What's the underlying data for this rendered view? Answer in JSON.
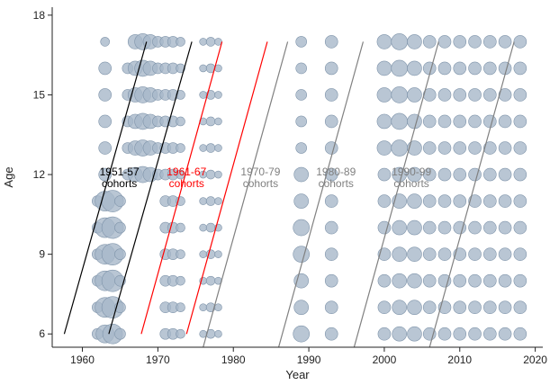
{
  "chart_data": {
    "type": "scatter",
    "title": "",
    "xlabel": "Year",
    "ylabel": "Age",
    "xlim": [
      1956,
      2021
    ],
    "ylim": [
      5.5,
      18.3
    ],
    "xticks": [
      1960,
      1970,
      1980,
      1990,
      2000,
      2010,
      2020
    ],
    "yticks": [
      6,
      9,
      12,
      15,
      18
    ],
    "grid": false,
    "bubble_color": "#a7b8c9",
    "bubble_edge_color": "#7f94aa",
    "bubble_columns": [
      {
        "year": 1962,
        "sizes": {
          "6": 6,
          "7": 6,
          "8": 6,
          "9": 6,
          "10": 6,
          "11": 6
        }
      },
      {
        "year": 1963,
        "sizes": {
          "6": 10,
          "7": 11,
          "8": 11,
          "9": 11,
          "10": 11,
          "11": 11,
          "12": 7,
          "13": 7,
          "14": 7,
          "15": 7,
          "16": 7,
          "17": 5
        }
      },
      {
        "year": 1964,
        "sizes": {
          "6": 11,
          "7": 12,
          "8": 12,
          "9": 12,
          "10": 12,
          "11": 12
        }
      },
      {
        "year": 1965,
        "sizes": {
          "6": 6,
          "7": 6,
          "8": 6,
          "9": 6,
          "10": 6,
          "11": 6
        }
      },
      {
        "year": 1966,
        "sizes": {
          "12": 6,
          "13": 6,
          "14": 6,
          "15": 6,
          "16": 6
        }
      },
      {
        "year": 1967,
        "sizes": {
          "12": 8,
          "13": 8,
          "14": 8,
          "15": 8,
          "16": 8,
          "17": 8
        }
      },
      {
        "year": 1968,
        "sizes": {
          "12": 9,
          "13": 9,
          "14": 9,
          "15": 9,
          "16": 9,
          "17": 9
        }
      },
      {
        "year": 1969,
        "sizes": {
          "12": 8,
          "13": 8,
          "14": 8,
          "15": 8,
          "16": 8,
          "17": 8
        }
      },
      {
        "year": 1970,
        "sizes": {
          "12": 6,
          "13": 6,
          "14": 6,
          "15": 6,
          "16": 6,
          "17": 6
        }
      },
      {
        "year": 1971,
        "sizes": {
          "6": 6,
          "7": 6,
          "8": 6,
          "9": 6,
          "10": 6,
          "11": 6,
          "12": 6,
          "13": 6,
          "14": 6,
          "15": 6,
          "16": 6,
          "17": 6
        }
      },
      {
        "year": 1972,
        "sizes": {
          "6": 6,
          "7": 6,
          "8": 6,
          "9": 6,
          "10": 6,
          "11": 6,
          "12": 6,
          "13": 6,
          "14": 6,
          "15": 6,
          "16": 6,
          "17": 6
        }
      },
      {
        "year": 1973,
        "sizes": {
          "6": 5,
          "7": 5,
          "8": 5,
          "9": 5,
          "10": 5,
          "11": 5,
          "12": 5,
          "13": 5,
          "14": 5,
          "15": 5,
          "16": 5,
          "17": 5
        }
      },
      {
        "year": 1976,
        "sizes": {
          "6": 4,
          "7": 4,
          "8": 4,
          "9": 4,
          "10": 4,
          "11": 4,
          "12": 4,
          "13": 4,
          "14": 4,
          "15": 4,
          "16": 4,
          "17": 4
        }
      },
      {
        "year": 1977,
        "sizes": {
          "6": 5,
          "7": 5,
          "8": 5,
          "9": 5,
          "10": 5,
          "11": 5,
          "12": 5,
          "13": 5,
          "14": 5,
          "15": 5,
          "16": 5,
          "17": 5
        }
      },
      {
        "year": 1978,
        "sizes": {
          "6": 4,
          "7": 4,
          "8": 4,
          "9": 4,
          "10": 4,
          "11": 4,
          "12": 4,
          "13": 4,
          "14": 4,
          "15": 4,
          "16": 4,
          "17": 4
        }
      },
      {
        "year": 1989,
        "sizes": {
          "6": 9,
          "7": 8,
          "8": 8,
          "9": 9,
          "10": 9,
          "11": 8,
          "12": 8,
          "13": 6,
          "14": 6,
          "15": 6,
          "16": 6,
          "17": 6
        }
      },
      {
        "year": 1993,
        "sizes": {
          "6": 7,
          "7": 7,
          "8": 7,
          "9": 7,
          "10": 7,
          "11": 7,
          "12": 7,
          "13": 7,
          "14": 7,
          "15": 7,
          "16": 7,
          "17": 7
        }
      },
      {
        "year": 2000,
        "sizes": {
          "6": 7,
          "7": 7,
          "8": 7,
          "9": 7,
          "10": 7,
          "11": 7,
          "12": 7,
          "13": 8,
          "14": 8,
          "15": 8,
          "16": 8,
          "17": 8
        }
      },
      {
        "year": 2002,
        "sizes": {
          "6": 8,
          "7": 8,
          "8": 8,
          "9": 8,
          "10": 8,
          "11": 8,
          "12": 8,
          "13": 9,
          "14": 9,
          "15": 9,
          "16": 9,
          "17": 9
        }
      },
      {
        "year": 2004,
        "sizes": {
          "6": 8,
          "7": 8,
          "8": 8,
          "9": 8,
          "10": 8,
          "11": 8,
          "12": 8,
          "13": 8,
          "14": 8,
          "15": 8,
          "16": 8,
          "17": 8
        }
      },
      {
        "year": 2006,
        "sizes": {
          "6": 7,
          "7": 7,
          "8": 7,
          "9": 7,
          "10": 7,
          "11": 7,
          "12": 7,
          "13": 7,
          "14": 7,
          "15": 7,
          "16": 7,
          "17": 7
        }
      },
      {
        "year": 2008,
        "sizes": {
          "6": 7,
          "7": 7,
          "8": 7,
          "9": 7,
          "10": 7,
          "11": 7,
          "12": 7,
          "13": 7,
          "14": 7,
          "15": 7,
          "16": 7,
          "17": 7
        }
      },
      {
        "year": 2010,
        "sizes": {
          "6": 7,
          "7": 7,
          "8": 7,
          "9": 7,
          "10": 7,
          "11": 7,
          "12": 7,
          "13": 7,
          "14": 7,
          "15": 7,
          "16": 7,
          "17": 7
        }
      },
      {
        "year": 2012,
        "sizes": {
          "6": 7,
          "7": 7,
          "8": 7,
          "9": 7,
          "10": 7,
          "11": 7,
          "12": 7,
          "13": 7,
          "14": 7,
          "15": 7,
          "16": 7,
          "17": 7
        }
      },
      {
        "year": 2014,
        "sizes": {
          "6": 7,
          "7": 7,
          "8": 7,
          "9": 7,
          "10": 7,
          "11": 7,
          "12": 7,
          "13": 7,
          "14": 7,
          "15": 7,
          "16": 7,
          "17": 7
        }
      },
      {
        "year": 2016,
        "sizes": {
          "6": 7,
          "7": 7,
          "8": 7,
          "9": 7,
          "10": 7,
          "11": 7,
          "12": 7,
          "13": 7,
          "14": 7,
          "15": 7,
          "16": 7,
          "17": 7
        }
      },
      {
        "year": 2018,
        "sizes": {
          "6": 7,
          "7": 7,
          "8": 7,
          "9": 7,
          "10": 7,
          "11": 7,
          "12": 7,
          "13": 7,
          "14": 7,
          "15": 7,
          "16": 7,
          "17": 7
        }
      }
    ],
    "cohort_lines": [
      {
        "group": "1951-57",
        "color": "#000000",
        "from": [
          1957.6,
          6
        ],
        "to": [
          1968.5,
          17
        ]
      },
      {
        "group": "1951-57",
        "color": "#000000",
        "from": [
          1963.5,
          6
        ],
        "to": [
          1974.5,
          17
        ]
      },
      {
        "group": "1961-67",
        "color": "#ff0000",
        "from": [
          1967.8,
          6
        ],
        "to": [
          1978.5,
          17
        ]
      },
      {
        "group": "1961-67",
        "color": "#ff0000",
        "from": [
          1973.8,
          6
        ],
        "to": [
          1984.5,
          17
        ]
      },
      {
        "group": "1970-79",
        "color": "#808080",
        "from": [
          1976.0,
          5.5
        ],
        "to": [
          1987.2,
          17
        ]
      },
      {
        "group": "1970-79",
        "color": "#808080",
        "from": [
          1986.0,
          5.5
        ],
        "to": [
          1997.2,
          17
        ]
      },
      {
        "group": "1980-89",
        "color": "#808080",
        "from": [
          1996.0,
          5.5
        ],
        "to": [
          2007.2,
          17
        ]
      },
      {
        "group": "1990-99",
        "color": "#808080",
        "from": [
          2006.0,
          5.5
        ],
        "to": [
          2017.2,
          17
        ]
      }
    ],
    "cohort_labels": [
      {
        "text_line1": "1951-57",
        "text_line2": "cohorts",
        "color": "#000000",
        "x": 1964.9,
        "y": 11.9
      },
      {
        "text_line1": "1961-67",
        "text_line2": "cohorts",
        "color": "#ff0000",
        "x": 1973.8,
        "y": 11.9
      },
      {
        "text_line1": "1970-79",
        "text_line2": "cohorts",
        "color": "#808080",
        "x": 1983.6,
        "y": 11.9
      },
      {
        "text_line1": "1980-89",
        "text_line2": "cohorts",
        "color": "#808080",
        "x": 1993.6,
        "y": 11.9
      },
      {
        "text_line1": "1990-99",
        "text_line2": "cohorts",
        "color": "#808080",
        "x": 2003.6,
        "y": 11.9
      }
    ]
  }
}
